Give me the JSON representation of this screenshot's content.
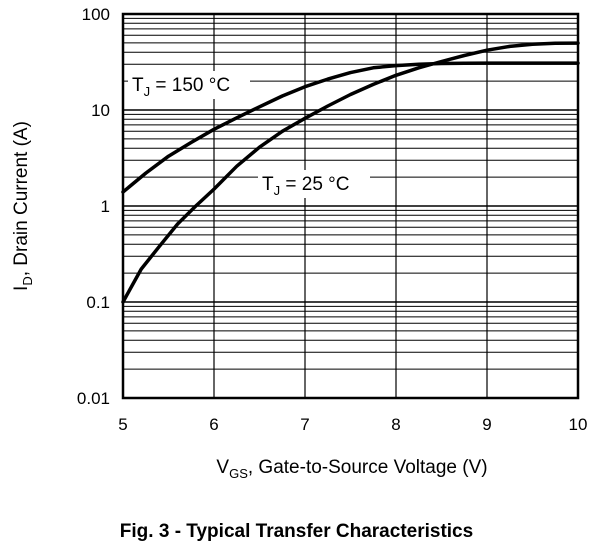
{
  "chart_data": {
    "type": "line",
    "title": "Fig. 3 - Typical Transfer Characteristics",
    "xlabel": {
      "main": "V",
      "sub": "GS",
      "rest": ", Gate-to-Source Voltage (V)"
    },
    "ylabel": {
      "main": "I",
      "sub": "D",
      "rest": ", Drain Current (A)"
    },
    "xlim": [
      5,
      10
    ],
    "ylim": [
      0.01,
      100
    ],
    "yscale": "log",
    "x_ticks": [
      "5",
      "6",
      "7",
      "8",
      "9",
      "10"
    ],
    "y_ticks": [
      "0.01",
      "0.1",
      "1",
      "10",
      "100"
    ],
    "grid": true,
    "series": [
      {
        "name": "TJ = 150 °C",
        "label": {
          "main": "T",
          "sub": "J",
          "rest": " = 150 °C"
        },
        "x": [
          5.0,
          5.25,
          5.5,
          5.75,
          6.0,
          6.25,
          6.5,
          6.75,
          7.0,
          7.25,
          7.5,
          7.75,
          8.0,
          8.25,
          8.5,
          8.75,
          9.0,
          9.5,
          10.0
        ],
        "y": [
          1.4,
          2.2,
          3.3,
          4.6,
          6.3,
          8.3,
          10.8,
          14.0,
          17.5,
          21.0,
          24.5,
          27.5,
          29.0,
          30.0,
          30.5,
          30.7,
          30.8,
          30.8,
          30.8
        ]
      },
      {
        "name": "TJ = 25 °C",
        "label": {
          "main": "T",
          "sub": "J",
          "rest": " = 25 °C"
        },
        "x": [
          5.0,
          5.2,
          5.4,
          5.6,
          5.8,
          6.0,
          6.25,
          6.5,
          6.75,
          7.0,
          7.25,
          7.5,
          7.75,
          8.0,
          8.25,
          8.5,
          8.75,
          9.0,
          9.25,
          9.5,
          9.75,
          10.0
        ],
        "y": [
          0.1,
          0.22,
          0.38,
          0.65,
          1.0,
          1.5,
          2.6,
          4.1,
          6.0,
          8.2,
          11.0,
          14.5,
          18.5,
          23.0,
          27.5,
          32.0,
          37.0,
          42.0,
          46.0,
          48.5,
          49.5,
          49.8
        ]
      }
    ]
  }
}
